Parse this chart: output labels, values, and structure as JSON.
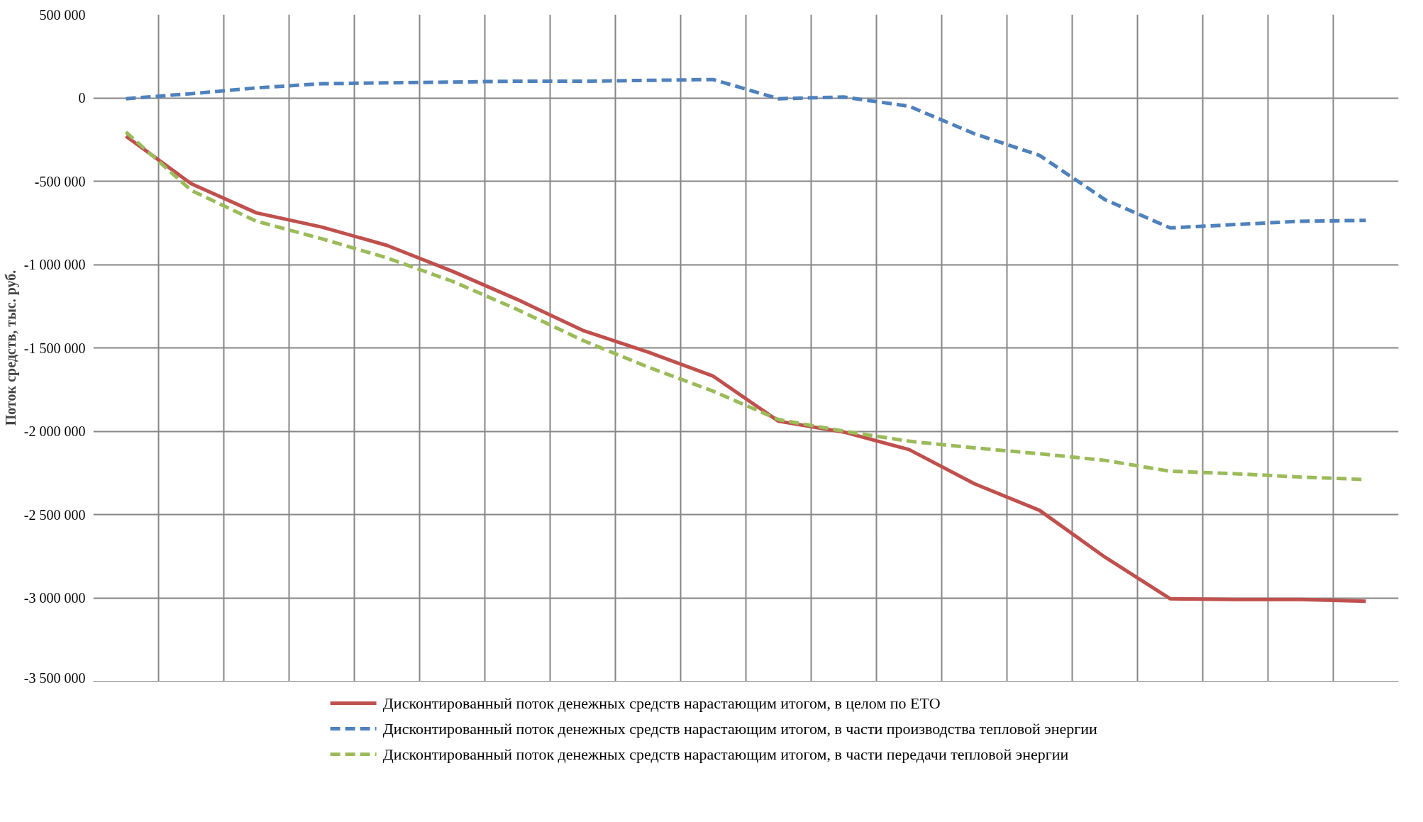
{
  "chart_data": {
    "type": "line",
    "ylabel": "Поток средств, тыс. руб.",
    "categories": [
      null,
      null,
      null,
      null,
      null,
      null,
      null,
      null,
      null,
      null,
      null,
      null,
      null,
      null,
      null,
      null,
      null,
      null,
      null,
      null
    ],
    "series": [
      {
        "name": "Дисконтированный поток денежных средств нарастающим итогом, в целом по ЕТО",
        "color": "#c0504d",
        "line_style": "solid",
        "values": [
          -230000,
          -515000,
          -690000,
          -775000,
          -885000,
          -1040000,
          -1210000,
          -1395000,
          -1525000,
          -1670000,
          -1940000,
          -2005000,
          -2110000,
          -2315000,
          -2475000,
          -2755000,
          -3005000,
          -3010000,
          -3010000,
          -3020000
        ]
      },
      {
        "name": "Дисконтированный поток денежных средств нарастающим итогом, в части производства тепловой энергии",
        "color": "#4f81bd",
        "line_style": "dashed",
        "values": [
          -5000,
          25000,
          60000,
          85000,
          90000,
          95000,
          100000,
          100000,
          105000,
          110000,
          -5000,
          5000,
          -50000,
          -215000,
          -345000,
          -610000,
          -780000,
          -760000,
          -740000,
          -735000
        ]
      },
      {
        "name": "Дисконтированный поток денежных средств нарастающим итогом, в части передачи тепловой энергии",
        "color": "#9bbb59",
        "line_style": "dashed",
        "values": [
          -205000,
          -555000,
          -740000,
          -845000,
          -960000,
          -1100000,
          -1270000,
          -1455000,
          -1615000,
          -1760000,
          -1930000,
          -2000000,
          -2060000,
          -2100000,
          -2135000,
          -2175000,
          -2240000,
          -2255000,
          -2275000,
          -2290000
        ]
      }
    ],
    "ylim": [
      -3500000,
      500000
    ],
    "yticks": [
      {
        "value": 500000,
        "label": "500 000"
      },
      {
        "value": 0,
        "label": "0"
      },
      {
        "value": -500000,
        "label": "-500 000"
      },
      {
        "value": -1000000,
        "label": "-1 000 000"
      },
      {
        "value": -1500000,
        "label": "-1 500 000"
      },
      {
        "value": -2000000,
        "label": "-2 000 000"
      },
      {
        "value": -2500000,
        "label": "-2 500 000"
      },
      {
        "value": -3000000,
        "label": "-3 000 000"
      },
      {
        "value": -3500000,
        "label": "-3 500 000"
      }
    ],
    "grid": true,
    "legend": "bottom",
    "tick_labels": "y",
    "marker": "none"
  }
}
